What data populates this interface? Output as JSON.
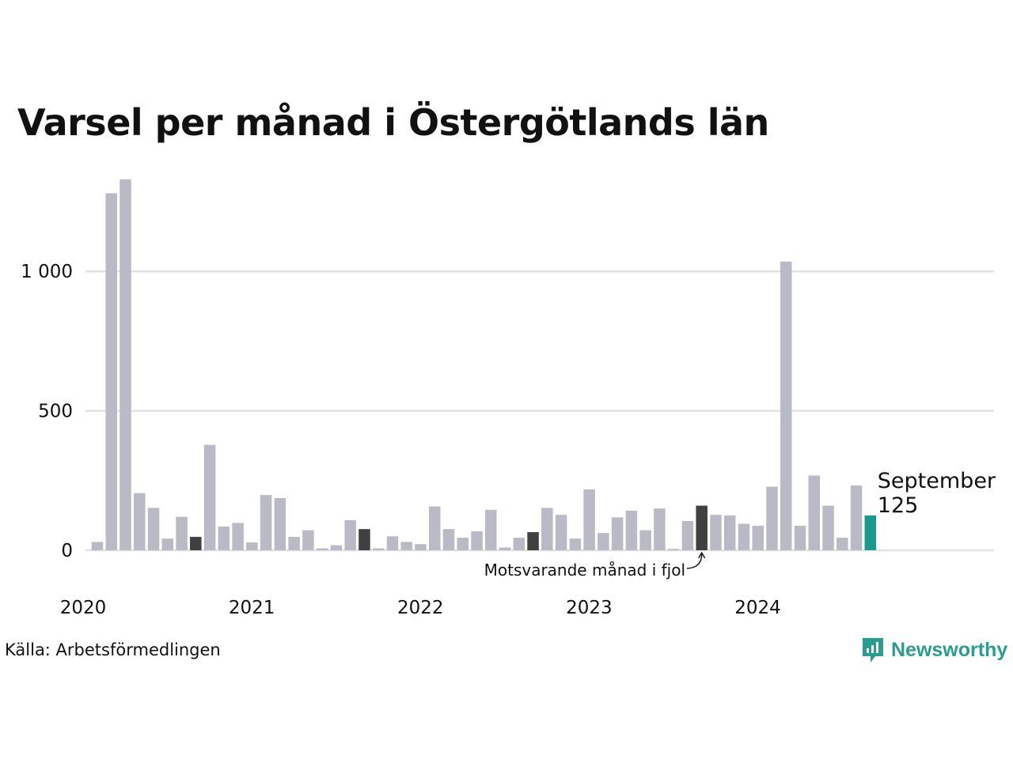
{
  "title": "Varsel per månad i Östergötlands län",
  "source": "Källa: Arbetsförmedlingen",
  "brand": {
    "name": "Newsworthy",
    "icon": "newsworthy-logo-icon",
    "color": "#2a9d8f"
  },
  "colors": {
    "default": "#bab9c6",
    "comparison": "#404040",
    "highlight": "#1a9a8b",
    "grid": "#e2e2e2"
  },
  "chart_data": {
    "type": "bar",
    "x_start": "2020-01",
    "x_tick_labels": [
      "2020",
      "2021",
      "2022",
      "2023",
      "2024"
    ],
    "y_ticks": [
      0,
      500,
      1000
    ],
    "y_tick_labels": [
      "0",
      "500",
      "1 000"
    ],
    "ylim": [
      0,
      1350
    ],
    "grid": true,
    "values": [
      30,
      1280,
      1330,
      205,
      152,
      42,
      120,
      48,
      378,
      85,
      98,
      28,
      198,
      187,
      48,
      72,
      7,
      18,
      108,
      76,
      7,
      50,
      30,
      22,
      157,
      76,
      45,
      68,
      145,
      10,
      45,
      65,
      152,
      127,
      42,
      218,
      62,
      118,
      142,
      72,
      150,
      5,
      105,
      160,
      127,
      125,
      95,
      88,
      228,
      1035,
      88,
      268,
      160,
      45,
      232,
      125
    ],
    "comparison_indices": [
      7,
      19,
      31,
      43
    ],
    "highlight_index": 55,
    "highlight_label": "September",
    "highlight_value_label": "125",
    "annotation": "Motsvarande månad i fjol"
  }
}
